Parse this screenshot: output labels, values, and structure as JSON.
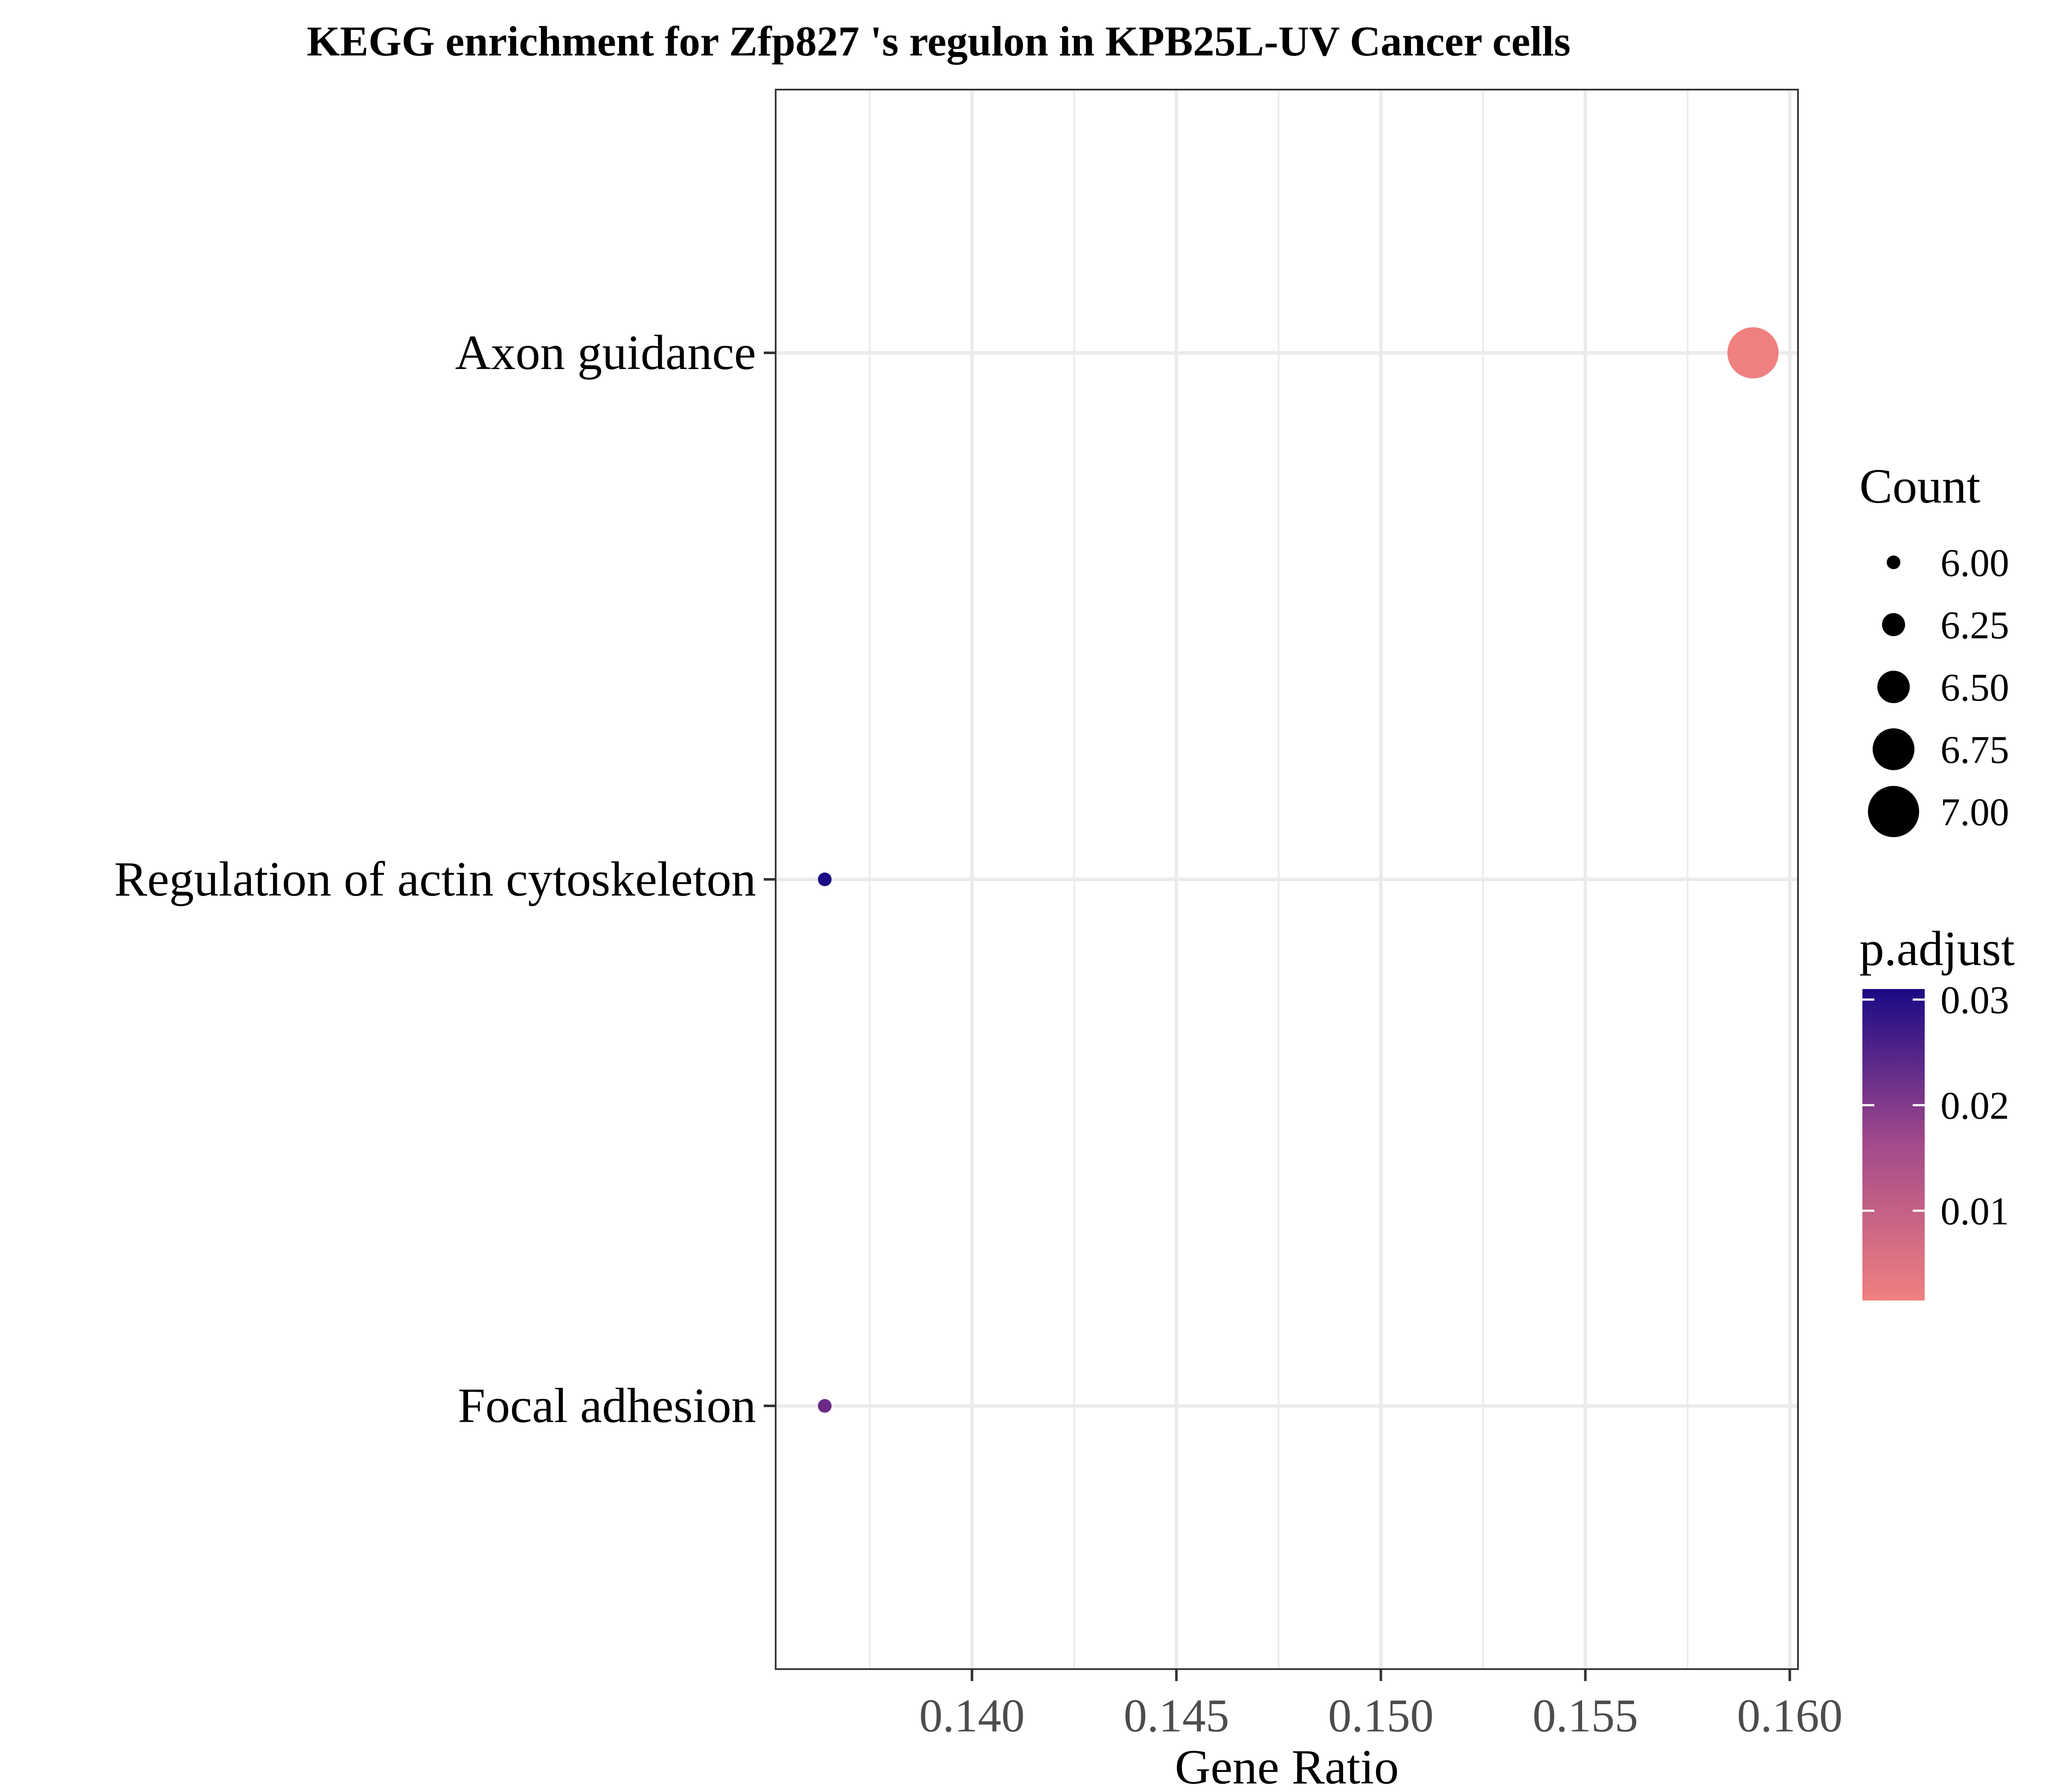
{
  "chart_data": {
    "type": "scatter",
    "title": "KEGG enrichment for Zfp827 's regulon in KPB25L-UV Cancer cells",
    "xlabel": "Gene Ratio",
    "ylabel": "",
    "xlim": [
      0.1352,
      0.1602
    ],
    "x_ticks": [
      "0.140",
      "0.145",
      "0.150",
      "0.155",
      "0.160"
    ],
    "x_tick_values": [
      0.14,
      0.145,
      0.15,
      0.155,
      0.16
    ],
    "categories": [
      "Axon guidance",
      "Regulation of actin cytoskeleton",
      "Focal adhesion"
    ],
    "points": [
      {
        "category": "Axon guidance",
        "x": 0.1591,
        "count": 7,
        "p_adjust": 0.0015,
        "color": "#F08080"
      },
      {
        "category": "Regulation of actin cytoskeleton",
        "x": 0.1364,
        "count": 6,
        "p_adjust": 0.031,
        "color": "#1B0A85"
      },
      {
        "category": "Focal adhesion",
        "x": 0.1364,
        "count": 6,
        "p_adjust": 0.022,
        "color": "#6B2A88"
      }
    ],
    "grid": true,
    "legend": {
      "placement": "right",
      "size": {
        "title": "Count",
        "labels": [
          "6.00",
          "6.25",
          "6.50",
          "6.75",
          "7.00"
        ],
        "values": [
          6.0,
          6.25,
          6.5,
          6.75,
          7.0
        ]
      },
      "color": {
        "title": "p.adjust",
        "labels": [
          "0.03",
          "0.02",
          "0.01"
        ],
        "values": [
          0.03,
          0.02,
          0.01
        ],
        "range": [
          0.0015,
          0.031
        ],
        "low_color": "#F08080",
        "high_color": "#1B0A85"
      }
    }
  }
}
